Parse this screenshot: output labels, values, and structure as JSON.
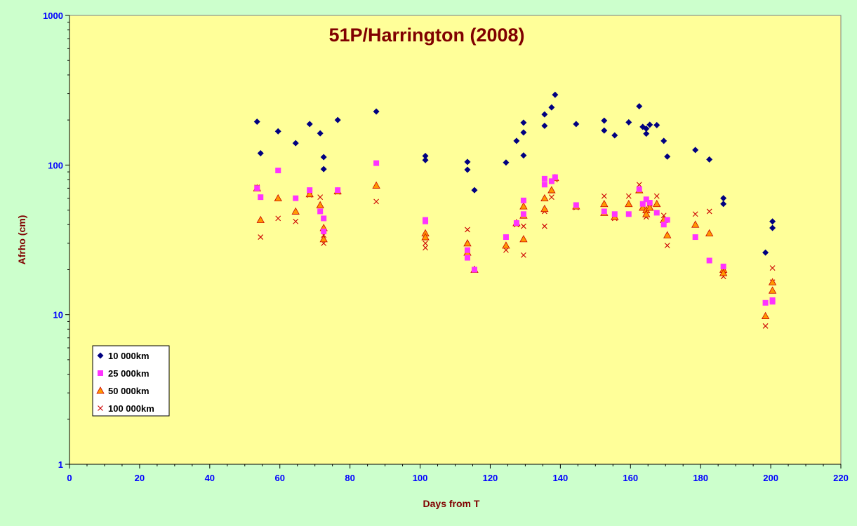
{
  "chart_data": {
    "type": "scatter",
    "title": "51P/Harrington (2008)",
    "xlabel": "Days from T",
    "ylabel": "Afrho (cm)",
    "xlim": [
      0,
      220
    ],
    "ylim": [
      1,
      1000
    ],
    "yscale": "log",
    "x_ticks": [
      0,
      20,
      40,
      60,
      80,
      100,
      120,
      140,
      160,
      180,
      200,
      220
    ],
    "y_ticks": [
      1,
      10,
      100,
      1000
    ],
    "grid": false,
    "legend_position": "bottom-left",
    "colors": {
      "page_background": "#ccffcc",
      "plot_background": "#ffff99",
      "title_text": "#800000",
      "axis_label_text": "#800000",
      "tick_label_text": "#0000ff"
    },
    "series": [
      {
        "name": "10 000km",
        "marker": "diamond",
        "color": "#000080",
        "points": [
          [
            53.5,
            195
          ],
          [
            54.5,
            120
          ],
          [
            59.5,
            168
          ],
          [
            64.5,
            140
          ],
          [
            68.5,
            188
          ],
          [
            71.5,
            163
          ],
          [
            72.5,
            113
          ],
          [
            72.5,
            94
          ],
          [
            76.5,
            200
          ],
          [
            87.5,
            228
          ],
          [
            101.5,
            115
          ],
          [
            101.5,
            108
          ],
          [
            113.5,
            105
          ],
          [
            113.5,
            93
          ],
          [
            115.5,
            68
          ],
          [
            124.5,
            104
          ],
          [
            127.5,
            145
          ],
          [
            129.5,
            192
          ],
          [
            129.5,
            165
          ],
          [
            129.5,
            116
          ],
          [
            135.5,
            218
          ],
          [
            135.5,
            183
          ],
          [
            137.5,
            243
          ],
          [
            138.5,
            295
          ],
          [
            144.5,
            188
          ],
          [
            152.5,
            198
          ],
          [
            152.5,
            170
          ],
          [
            155.5,
            158
          ],
          [
            159.5,
            193
          ],
          [
            162.5,
            247
          ],
          [
            163.5,
            180
          ],
          [
            164.5,
            175
          ],
          [
            164.5,
            162
          ],
          [
            165.5,
            186
          ],
          [
            167.5,
            185
          ],
          [
            169.5,
            145
          ],
          [
            170.5,
            114
          ],
          [
            178.5,
            126
          ],
          [
            182.5,
            109
          ],
          [
            186.5,
            60
          ],
          [
            186.5,
            55
          ],
          [
            198.5,
            26
          ],
          [
            200.5,
            42
          ],
          [
            200.5,
            38
          ]
        ]
      },
      {
        "name": "25 000km",
        "marker": "square",
        "color": "#ff33ff",
        "points": [
          [
            53.5,
            70
          ],
          [
            54.5,
            61
          ],
          [
            59.5,
            92
          ],
          [
            64.5,
            60
          ],
          [
            68.5,
            68
          ],
          [
            71.5,
            49
          ],
          [
            72.5,
            44
          ],
          [
            72.5,
            36
          ],
          [
            76.5,
            68
          ],
          [
            87.5,
            103
          ],
          [
            101.5,
            43
          ],
          [
            101.5,
            42
          ],
          [
            113.5,
            24
          ],
          [
            113.5,
            27
          ],
          [
            115.5,
            20
          ],
          [
            124.5,
            33
          ],
          [
            127.5,
            41
          ],
          [
            129.5,
            58
          ],
          [
            129.5,
            47
          ],
          [
            135.5,
            81
          ],
          [
            135.5,
            74
          ],
          [
            137.5,
            78
          ],
          [
            138.5,
            83
          ],
          [
            144.5,
            54
          ],
          [
            152.5,
            49
          ],
          [
            155.5,
            47
          ],
          [
            159.5,
            47
          ],
          [
            162.5,
            69
          ],
          [
            163.5,
            55
          ],
          [
            164.5,
            59
          ],
          [
            165.5,
            56
          ],
          [
            167.5,
            48
          ],
          [
            169.5,
            40
          ],
          [
            170.5,
            43
          ],
          [
            178.5,
            33
          ],
          [
            182.5,
            23
          ],
          [
            186.5,
            21
          ],
          [
            198.5,
            12
          ],
          [
            200.5,
            12.5
          ],
          [
            200.5,
            12.2
          ]
        ]
      },
      {
        "name": "50 000km",
        "marker": "triangle",
        "color": "#ff9900",
        "stroke": "#cc0000",
        "points": [
          [
            53.5,
            70
          ],
          [
            54.5,
            43
          ],
          [
            59.5,
            60
          ],
          [
            64.5,
            49
          ],
          [
            68.5,
            64
          ],
          [
            71.5,
            54
          ],
          [
            72.5,
            38
          ],
          [
            72.5,
            32
          ],
          [
            76.5,
            67
          ],
          [
            87.5,
            73
          ],
          [
            101.5,
            35
          ],
          [
            101.5,
            33
          ],
          [
            113.5,
            30
          ],
          [
            113.5,
            26
          ],
          [
            115.5,
            20
          ],
          [
            124.5,
            29
          ],
          [
            127.5,
            41
          ],
          [
            129.5,
            53
          ],
          [
            129.5,
            46
          ],
          [
            129.5,
            32
          ],
          [
            135.5,
            60
          ],
          [
            135.5,
            51
          ],
          [
            137.5,
            68
          ],
          [
            138.5,
            82
          ],
          [
            144.5,
            53
          ],
          [
            152.5,
            55
          ],
          [
            152.5,
            48
          ],
          [
            155.5,
            45
          ],
          [
            159.5,
            55
          ],
          [
            162.5,
            68
          ],
          [
            163.5,
            52
          ],
          [
            164.5,
            50
          ],
          [
            164.5,
            47
          ],
          [
            165.5,
            52
          ],
          [
            167.5,
            55
          ],
          [
            169.5,
            43
          ],
          [
            170.5,
            34
          ],
          [
            178.5,
            40
          ],
          [
            182.5,
            35
          ],
          [
            186.5,
            20
          ],
          [
            186.5,
            19
          ],
          [
            198.5,
            9.8
          ],
          [
            200.5,
            16.5
          ],
          [
            200.5,
            14.5
          ]
        ]
      },
      {
        "name": "100 000km",
        "marker": "cross",
        "color": "#cc0000",
        "points": [
          [
            53.5,
            71
          ],
          [
            54.5,
            33
          ],
          [
            59.5,
            44
          ],
          [
            64.5,
            42
          ],
          [
            68.5,
            63
          ],
          [
            71.5,
            61
          ],
          [
            72.5,
            34
          ],
          [
            72.5,
            30
          ],
          [
            76.5,
            66
          ],
          [
            87.5,
            57
          ],
          [
            101.5,
            30
          ],
          [
            101.5,
            28
          ],
          [
            113.5,
            37
          ],
          [
            113.5,
            27
          ],
          [
            115.5,
            20
          ],
          [
            124.5,
            27
          ],
          [
            127.5,
            40
          ],
          [
            129.5,
            39
          ],
          [
            129.5,
            25
          ],
          [
            135.5,
            49
          ],
          [
            135.5,
            39
          ],
          [
            137.5,
            61
          ],
          [
            138.5,
            80
          ],
          [
            144.5,
            52
          ],
          [
            152.5,
            62
          ],
          [
            155.5,
            44
          ],
          [
            159.5,
            62
          ],
          [
            162.5,
            74
          ],
          [
            163.5,
            52
          ],
          [
            164.5,
            48
          ],
          [
            164.5,
            45
          ],
          [
            165.5,
            55
          ],
          [
            167.5,
            62
          ],
          [
            169.5,
            46
          ],
          [
            170.5,
            29
          ],
          [
            178.5,
            47
          ],
          [
            182.5,
            49
          ],
          [
            186.5,
            19
          ],
          [
            186.5,
            18
          ],
          [
            198.5,
            8.4
          ],
          [
            200.5,
            20.5
          ],
          [
            200.5,
            16.5
          ]
        ]
      }
    ]
  }
}
